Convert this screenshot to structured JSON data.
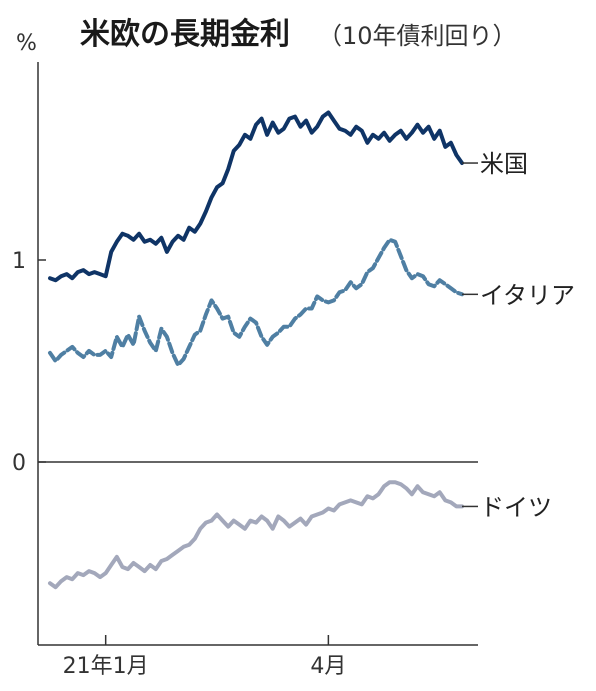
{
  "chart_data": {
    "type": "line",
    "title": "米欧の長期金利",
    "subtitle": "（10年債利回り）",
    "unit_label": "%",
    "ylim": [
      -0.8,
      2.0
    ],
    "y_ticks": [
      {
        "value": 1,
        "label": "1"
      },
      {
        "value": 0,
        "label": "0"
      }
    ],
    "x_ticks": [
      {
        "index": 10,
        "label": "21年1月"
      },
      {
        "index": 50,
        "label": "4月"
      }
    ],
    "x_count": 75,
    "series": [
      {
        "name": "米国",
        "color": "#0f3466",
        "dash": "solid",
        "values": [
          0.91,
          0.9,
          0.92,
          0.93,
          0.91,
          0.94,
          0.95,
          0.93,
          0.94,
          0.93,
          0.92,
          1.04,
          1.09,
          1.13,
          1.12,
          1.1,
          1.13,
          1.09,
          1.1,
          1.08,
          1.11,
          1.04,
          1.09,
          1.12,
          1.1,
          1.16,
          1.14,
          1.18,
          1.24,
          1.31,
          1.36,
          1.38,
          1.45,
          1.54,
          1.57,
          1.62,
          1.6,
          1.67,
          1.7,
          1.62,
          1.68,
          1.63,
          1.65,
          1.7,
          1.71,
          1.66,
          1.69,
          1.63,
          1.66,
          1.71,
          1.73,
          1.69,
          1.65,
          1.64,
          1.62,
          1.66,
          1.64,
          1.58,
          1.62,
          1.6,
          1.63,
          1.59,
          1.62,
          1.64,
          1.6,
          1.63,
          1.67,
          1.63,
          1.66,
          1.6,
          1.64,
          1.56,
          1.58,
          1.52,
          1.48
        ]
      },
      {
        "name": "イタリア",
        "color": "#4f7fa3",
        "dash": "dashed",
        "values": [
          0.54,
          0.5,
          0.53,
          0.55,
          0.57,
          0.54,
          0.52,
          0.55,
          0.53,
          0.53,
          0.55,
          0.52,
          0.62,
          0.57,
          0.63,
          0.58,
          0.72,
          0.65,
          0.59,
          0.55,
          0.66,
          0.62,
          0.54,
          0.48,
          0.51,
          0.57,
          0.63,
          0.65,
          0.73,
          0.8,
          0.76,
          0.71,
          0.72,
          0.64,
          0.62,
          0.67,
          0.71,
          0.69,
          0.62,
          0.58,
          0.62,
          0.64,
          0.67,
          0.67,
          0.71,
          0.73,
          0.76,
          0.76,
          0.82,
          0.8,
          0.79,
          0.8,
          0.84,
          0.85,
          0.89,
          0.86,
          0.88,
          0.94,
          0.96,
          1.01,
          1.06,
          1.1,
          1.09,
          1.02,
          0.95,
          0.91,
          0.93,
          0.92,
          0.88,
          0.87,
          0.9,
          0.88,
          0.86,
          0.84,
          0.83
        ]
      },
      {
        "name": "ドイツ",
        "color": "#a3a8bb",
        "dash": "solid",
        "values": [
          -0.6,
          -0.62,
          -0.59,
          -0.57,
          -0.58,
          -0.55,
          -0.56,
          -0.54,
          -0.55,
          -0.57,
          -0.55,
          -0.51,
          -0.47,
          -0.52,
          -0.53,
          -0.5,
          -0.52,
          -0.54,
          -0.51,
          -0.53,
          -0.49,
          -0.48,
          -0.46,
          -0.44,
          -0.42,
          -0.41,
          -0.38,
          -0.33,
          -0.3,
          -0.29,
          -0.26,
          -0.29,
          -0.32,
          -0.29,
          -0.31,
          -0.33,
          -0.29,
          -0.3,
          -0.27,
          -0.29,
          -0.33,
          -0.27,
          -0.29,
          -0.32,
          -0.3,
          -0.28,
          -0.31,
          -0.27,
          -0.26,
          -0.25,
          -0.23,
          -0.24,
          -0.21,
          -0.2,
          -0.19,
          -0.2,
          -0.21,
          -0.17,
          -0.18,
          -0.16,
          -0.12,
          -0.1,
          -0.1,
          -0.11,
          -0.13,
          -0.16,
          -0.12,
          -0.15,
          -0.16,
          -0.17,
          -0.15,
          -0.19,
          -0.2,
          -0.22,
          -0.22
        ]
      }
    ]
  }
}
